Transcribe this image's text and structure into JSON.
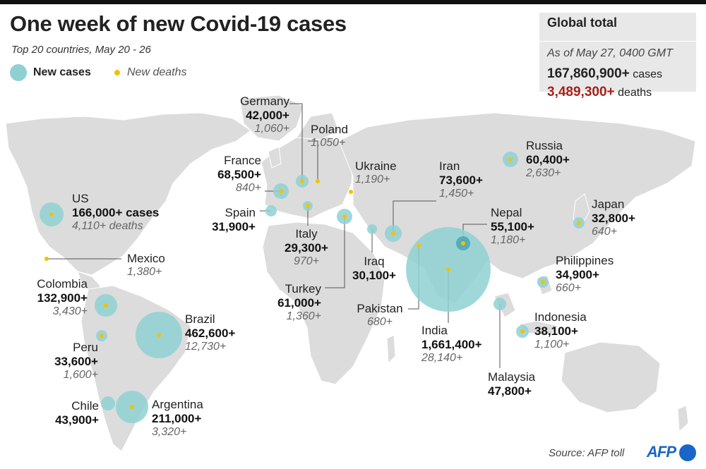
{
  "title": "One week of new Covid-19 cases",
  "subtitle": "Top 20 countries, May 20 - 26",
  "legend": {
    "cases": "New cases",
    "deaths": "New deaths"
  },
  "global": {
    "title": "Global total",
    "as_of": "As of May 27, 0400 GMT",
    "cases_value": "167,860,900+",
    "cases_unit": "cases",
    "deaths_value": "3,489,300+",
    "deaths_unit": "deaths"
  },
  "countries": [
    {
      "id": "us",
      "name": "US",
      "cases": "166,000+ cases",
      "deaths": "4,110+ deaths"
    },
    {
      "id": "mexico",
      "name": "Mexico",
      "cases": "",
      "deaths": "1,380+"
    },
    {
      "id": "colombia",
      "name": "Colombia",
      "cases": "132,900+",
      "deaths": "3,430+"
    },
    {
      "id": "peru",
      "name": "Peru",
      "cases": "33,600+",
      "deaths": "1,600+"
    },
    {
      "id": "chile",
      "name": "Chile",
      "cases": "43,900+",
      "deaths": ""
    },
    {
      "id": "brazil",
      "name": "Brazil",
      "cases": "462,600+",
      "deaths": "12,730+"
    },
    {
      "id": "argentina",
      "name": "Argentina",
      "cases": "211,000+",
      "deaths": "3,320+"
    },
    {
      "id": "germany",
      "name": "Germany",
      "cases": "42,000+",
      "deaths": "1,060+"
    },
    {
      "id": "poland",
      "name": "Poland",
      "cases": "",
      "deaths": "1,050+"
    },
    {
      "id": "france",
      "name": "France",
      "cases": "68,500+",
      "deaths": "840+"
    },
    {
      "id": "spain",
      "name": "Spain",
      "cases": "31,900+",
      "deaths": ""
    },
    {
      "id": "italy",
      "name": "Italy",
      "cases": "29,300+",
      "deaths": "970+"
    },
    {
      "id": "ukraine",
      "name": "Ukraine",
      "cases": "",
      "deaths": "1,190+"
    },
    {
      "id": "turkey",
      "name": "Turkey",
      "cases": "61,000+",
      "deaths": "1,360+"
    },
    {
      "id": "iraq",
      "name": "Iraq",
      "cases": "30,100+",
      "deaths": ""
    },
    {
      "id": "iran",
      "name": "Iran",
      "cases": "73,600+",
      "deaths": "1,450+"
    },
    {
      "id": "pakistan",
      "name": "Pakistan",
      "cases": "",
      "deaths": "680+"
    },
    {
      "id": "india",
      "name": "India",
      "cases": "1,661,400+",
      "deaths": "28,140+"
    },
    {
      "id": "nepal",
      "name": "Nepal",
      "cases": "55,100+",
      "deaths": "1,180+"
    },
    {
      "id": "russia",
      "name": "Russia",
      "cases": "60,400+",
      "deaths": "2,630+"
    },
    {
      "id": "japan",
      "name": "Japan",
      "cases": "32,800+",
      "deaths": "640+"
    },
    {
      "id": "philippines",
      "name": "Philippines",
      "cases": "34,900+",
      "deaths": "660+"
    },
    {
      "id": "indonesia",
      "name": "Indonesia",
      "cases": "38,100+",
      "deaths": "1,100+"
    },
    {
      "id": "malaysia",
      "name": "Malaysia",
      "cases": "47,800+",
      "deaths": ""
    }
  ],
  "source": "Source: AFP toll",
  "logo": "AFP",
  "colors": {
    "cases": "#8fd1d3",
    "deaths": "#f2c200",
    "land": "#dcdcdc",
    "red": "#a8201a",
    "afp": "#1a66c8"
  }
}
